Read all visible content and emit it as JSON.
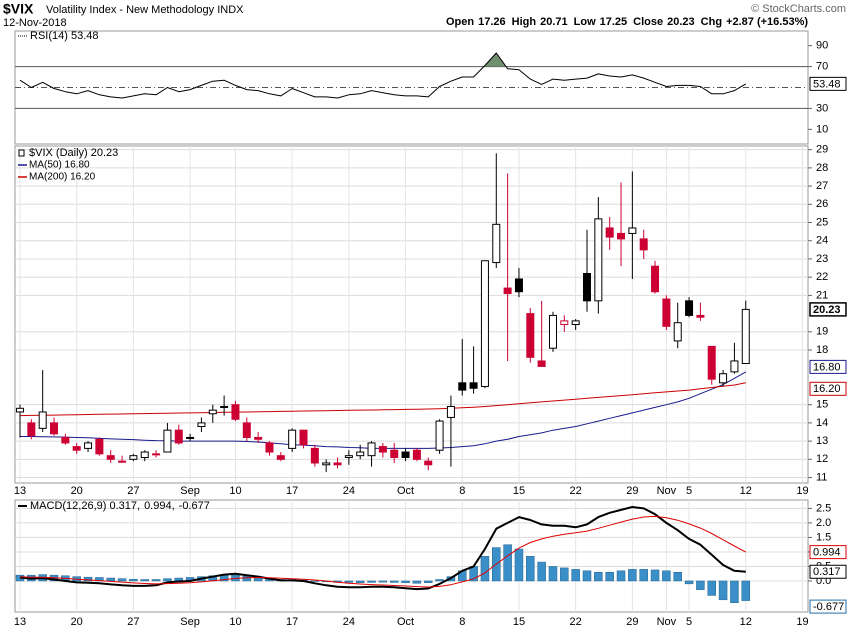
{
  "header": {
    "symbol": "$VIX",
    "name": "Volatility Index - New Methodology INDX",
    "date": "12-Nov-2018",
    "credit": "© StockCharts.com",
    "quote": [
      {
        "label": "Open",
        "value": 17.26
      },
      {
        "label": "High",
        "value": 20.71
      },
      {
        "label": "Low",
        "value": 17.25
      },
      {
        "label": "Close",
        "value": 20.23
      },
      {
        "label": "Chg",
        "value": "+2.87 (+16.53%)"
      }
    ]
  },
  "chart_data": [
    {
      "type": "line",
      "label": "RSI(14) 53.48",
      "color": "#000000",
      "fill_color": "#6f8f6f",
      "fill_level": 70,
      "levels": [
        70,
        50,
        30
      ],
      "ylim": [
        -4,
        104
      ],
      "yticks": [
        10,
        30,
        70,
        90
      ],
      "badge": "53.48",
      "values": [
        57,
        50,
        55,
        49,
        46,
        44,
        47,
        43,
        41,
        40,
        42,
        44,
        43,
        50,
        46,
        48,
        52,
        56,
        57,
        52,
        48,
        47,
        44,
        42,
        49,
        45,
        41,
        41,
        40,
        43,
        44,
        47,
        45,
        43,
        42,
        42,
        41,
        51,
        56,
        60,
        60,
        71,
        83,
        68,
        67,
        58,
        53,
        58,
        57,
        58,
        59,
        63,
        61,
        60,
        62,
        59,
        55,
        51,
        52,
        52,
        51,
        44,
        44,
        47,
        53.48,
        null,
        null,
        null,
        null,
        null
      ]
    },
    {
      "type": "candlestick",
      "label": "$VIX (Daily) 20.23",
      "badge": "20.23",
      "up_color": "#000000",
      "down_color": "#cc0033",
      "grid": true,
      "ylim": [
        10.7,
        29.2
      ],
      "yticks": [
        11,
        12,
        13,
        14,
        15,
        18,
        19,
        21,
        22,
        23,
        24,
        25,
        26,
        27,
        28,
        29
      ],
      "categories": [
        "13",
        null,
        null,
        null,
        null,
        "20",
        null,
        null,
        null,
        null,
        "27",
        null,
        null,
        null,
        null,
        "Sep",
        null,
        null,
        null,
        "10",
        null,
        null,
        null,
        null,
        "17",
        null,
        null,
        null,
        null,
        "24",
        null,
        null,
        null,
        null,
        "Oct",
        null,
        null,
        null,
        null,
        "8",
        null,
        null,
        null,
        null,
        "15",
        null,
        null,
        null,
        null,
        "22",
        null,
        null,
        null,
        null,
        "29",
        null,
        null,
        "Nov",
        null,
        "5",
        null,
        null,
        null,
        null,
        "12",
        null,
        null,
        null,
        null,
        "19"
      ],
      "open": [
        14.6,
        14.0,
        13.7,
        14.0,
        13.2,
        12.7,
        12.6,
        13.1,
        12.2,
        11.9,
        12.0,
        12.1,
        12.3,
        12.4,
        13.6,
        13.2,
        13.8,
        14.5,
        14.9,
        15.0,
        14.0,
        13.2,
        12.9,
        12.2,
        12.6,
        13.6,
        12.6,
        11.7,
        11.8,
        12.1,
        12.2,
        12.2,
        12.7,
        12.5,
        12.4,
        12.5,
        11.9,
        12.5,
        14.3,
        16.2,
        16.2,
        16.0,
        22.8,
        21.4,
        21.9,
        20.0,
        17.4,
        18.1,
        19.4,
        19.4,
        22.2,
        20.7,
        24.7,
        24.4,
        24.4,
        24.1,
        22.6,
        20.8,
        18.5,
        20.7,
        19.9,
        18.2,
        16.2,
        16.8,
        17.26,
        null,
        null,
        null,
        null,
        null
      ],
      "high": [
        15.0,
        14.2,
        16.9,
        14.3,
        13.4,
        12.9,
        13.0,
        13.2,
        12.5,
        12.2,
        12.3,
        12.5,
        12.5,
        14.0,
        13.9,
        13.4,
        14.3,
        15.0,
        15.5,
        15.2,
        14.3,
        13.5,
        13.0,
        12.4,
        13.7,
        13.6,
        12.8,
        12.0,
        12.1,
        12.5,
        12.8,
        13.0,
        12.9,
        12.9,
        12.6,
        12.6,
        12.1,
        14.2,
        15.5,
        18.6,
        18.2,
        22.9,
        28.8,
        27.7,
        22.5,
        20.3,
        20.7,
        20.1,
        19.9,
        19.7,
        24.6,
        26.4,
        25.3,
        27.2,
        27.8,
        24.6,
        22.9,
        21.0,
        20.6,
        20.9,
        20.6,
        18.2,
        16.9,
        18.4,
        20.71,
        null,
        null,
        null,
        null,
        null
      ],
      "low": [
        13.2,
        13.1,
        13.5,
        13.3,
        12.8,
        12.3,
        12.4,
        12.2,
        11.8,
        11.8,
        11.9,
        11.9,
        12.1,
        12.4,
        12.8,
        13.0,
        13.5,
        14.0,
        14.4,
        14.1,
        13.0,
        12.9,
        12.2,
        11.9,
        12.4,
        12.6,
        11.6,
        11.3,
        11.5,
        11.7,
        12.0,
        11.6,
        12.1,
        11.8,
        11.9,
        11.9,
        11.4,
        12.3,
        11.6,
        15.5,
        15.6,
        15.9,
        22.5,
        17.4,
        20.9,
        17.3,
        17.1,
        17.9,
        19.0,
        19.1,
        20.1,
        20.0,
        23.5,
        22.6,
        21.9,
        23.0,
        21.1,
        19.1,
        18.1,
        19.8,
        19.6,
        16.1,
        16.0,
        16.7,
        17.25,
        null,
        null,
        null,
        null,
        null
      ],
      "close": [
        14.8,
        13.3,
        14.6,
        13.4,
        12.9,
        12.5,
        12.9,
        12.3,
        12.0,
        11.9,
        12.2,
        12.4,
        12.3,
        13.6,
        12.9,
        13.2,
        14.0,
        14.7,
        14.9,
        14.2,
        13.2,
        13.1,
        12.4,
        12.0,
        13.6,
        12.8,
        11.8,
        11.8,
        11.7,
        12.2,
        12.4,
        12.9,
        12.4,
        12.1,
        12.1,
        12.0,
        11.7,
        14.1,
        14.9,
        15.8,
        15.9,
        22.9,
        24.9,
        21.1,
        21.2,
        17.6,
        17.1,
        19.9,
        19.6,
        19.6,
        20.7,
        25.2,
        24.2,
        24.1,
        24.7,
        23.5,
        21.2,
        19.3,
        19.5,
        19.9,
        19.8,
        16.4,
        16.7,
        17.4,
        20.23,
        null,
        null,
        null,
        null,
        null
      ],
      "series": [
        {
          "name": "MA(50) 16.80",
          "color": "#1a1a8c",
          "badge": "16.80",
          "values": [
            13.25,
            13.25,
            13.24,
            13.23,
            13.22,
            13.2,
            13.18,
            13.15,
            13.12,
            13.1,
            13.08,
            13.05,
            13.03,
            13.02,
            13.0,
            13.0,
            13.0,
            13.0,
            13.0,
            13.0,
            12.98,
            12.95,
            12.9,
            12.85,
            12.8,
            12.78,
            12.75,
            12.7,
            12.68,
            12.65,
            12.63,
            12.6,
            12.6,
            12.6,
            12.6,
            12.6,
            12.6,
            12.62,
            12.65,
            12.7,
            12.75,
            12.85,
            13.0,
            13.1,
            13.25,
            13.35,
            13.45,
            13.6,
            13.7,
            13.8,
            13.95,
            14.1,
            14.25,
            14.4,
            14.55,
            14.7,
            14.85,
            15.0,
            15.15,
            15.35,
            15.6,
            15.85,
            16.1,
            16.45,
            16.8,
            null,
            null,
            null,
            null,
            null
          ]
        },
        {
          "name": "MA(200) 16.20",
          "color": "#cc0000",
          "badge": "16.20",
          "values": [
            14.4,
            14.41,
            14.42,
            14.43,
            14.44,
            14.45,
            14.46,
            14.47,
            14.48,
            14.49,
            14.5,
            14.51,
            14.52,
            14.53,
            14.54,
            14.55,
            14.56,
            14.57,
            14.58,
            14.59,
            14.6,
            14.61,
            14.62,
            14.63,
            14.64,
            14.65,
            14.66,
            14.67,
            14.68,
            14.69,
            14.7,
            14.71,
            14.72,
            14.73,
            14.74,
            14.75,
            14.76,
            14.78,
            14.8,
            14.83,
            14.86,
            14.9,
            14.95,
            15.0,
            15.05,
            15.1,
            15.15,
            15.2,
            15.25,
            15.3,
            15.35,
            15.4,
            15.45,
            15.5,
            15.55,
            15.6,
            15.65,
            15.7,
            15.75,
            15.8,
            15.87,
            15.94,
            16.01,
            16.08,
            16.2,
            null,
            null,
            null,
            null,
            null
          ]
        }
      ]
    },
    {
      "type": "combo",
      "grid": true,
      "ylim": [
        -1.07,
        2.79
      ],
      "yticks": [
        {
          "value": 0,
          "label": "0.0"
        },
        0.5,
        {
          "value": 1,
          "label": "1.0"
        },
        1.5,
        {
          "value": 2,
          "label": "2.0"
        },
        2.5
      ],
      "categories": [
        "13",
        null,
        null,
        null,
        null,
        "20",
        null,
        null,
        null,
        null,
        "27",
        null,
        null,
        null,
        null,
        "Sep",
        null,
        null,
        null,
        "10",
        null,
        null,
        null,
        null,
        "17",
        null,
        null,
        null,
        null,
        "24",
        null,
        null,
        null,
        null,
        "Oct",
        null,
        null,
        null,
        null,
        "8",
        null,
        null,
        null,
        null,
        "15",
        null,
        null,
        null,
        null,
        "22",
        null,
        null,
        null,
        null,
        "29",
        null,
        null,
        "Nov",
        null,
        "5",
        null,
        null,
        null,
        null,
        "12",
        null,
        null,
        null,
        null,
        "19"
      ],
      "series": [
        {
          "name": "-0.677",
          "kind": "bar",
          "color": "#3b8fc9",
          "badge": "-0.677",
          "values": [
            0.2,
            0.2,
            0.22,
            0.2,
            0.18,
            0.15,
            0.13,
            0.12,
            0.1,
            0.08,
            0.06,
            0.05,
            0.05,
            0.08,
            0.1,
            0.12,
            0.15,
            0.18,
            0.2,
            0.2,
            0.16,
            0.12,
            0.08,
            0.05,
            0.05,
            0.03,
            0.0,
            -0.03,
            -0.05,
            -0.05,
            -0.06,
            -0.05,
            -0.04,
            -0.05,
            -0.06,
            -0.08,
            -0.06,
            0.05,
            0.15,
            0.35,
            0.5,
            0.85,
            1.15,
            1.25,
            1.1,
            0.85,
            0.65,
            0.5,
            0.45,
            0.4,
            0.35,
            0.3,
            0.3,
            0.35,
            0.4,
            0.4,
            0.38,
            0.35,
            0.3,
            -0.1,
            -0.3,
            -0.5,
            -0.65,
            -0.75,
            -0.677,
            null,
            null,
            null,
            null,
            null
          ]
        },
        {
          "name": "MACD(12,26,9) 0.317,",
          "kind": "line",
          "color": "#000000",
          "width": 2,
          "badge": "0.317",
          "values": [
            0.12,
            0.08,
            0.1,
            0.05,
            0.0,
            -0.05,
            -0.06,
            -0.08,
            -0.12,
            -0.15,
            -0.17,
            -0.17,
            -0.15,
            -0.05,
            -0.02,
            0.0,
            0.08,
            0.15,
            0.22,
            0.25,
            0.2,
            0.15,
            0.08,
            0.02,
            0.02,
            0.0,
            -0.08,
            -0.15,
            -0.2,
            -0.22,
            -0.22,
            -0.2,
            -0.2,
            -0.22,
            -0.25,
            -0.28,
            -0.26,
            -0.1,
            0.1,
            0.35,
            0.5,
            1.1,
            1.8,
            2.0,
            2.2,
            2.1,
            1.95,
            1.9,
            1.9,
            1.85,
            1.95,
            2.2,
            2.35,
            2.45,
            2.55,
            2.5,
            2.3,
            2.0,
            1.75,
            1.45,
            1.25,
            0.9,
            0.55,
            0.35,
            0.317,
            null,
            null,
            null,
            null,
            null
          ]
        },
        {
          "name": "0.994,",
          "kind": "line",
          "color": "#e00000",
          "width": 1,
          "badge": "0.994",
          "values": [
            0.144,
            0.131,
            0.125,
            0.11,
            0.088,
            0.06,
            0.036,
            0.013,
            -0.014,
            -0.041,
            -0.067,
            -0.088,
            -0.1,
            -0.09,
            -0.076,
            -0.061,
            -0.033,
            0.004,
            0.047,
            0.088,
            0.11,
            0.118,
            0.11,
            0.092,
            0.078,
            0.062,
            0.034,
            -0.003,
            -0.042,
            -0.078,
            -0.106,
            -0.125,
            -0.14,
            -0.156,
            -0.175,
            -0.196,
            -0.209,
            -0.187,
            -0.13,
            -0.034,
            0.073,
            0.278,
            0.582,
            0.866,
            1.133,
            1.326,
            1.451,
            1.541,
            1.613,
            1.66,
            1.718,
            1.814,
            1.922,
            2.027,
            2.132,
            2.205,
            2.224,
            2.179,
            2.094,
            1.965,
            1.822,
            1.637,
            1.42,
            1.206,
            0.994,
            null,
            null,
            null,
            null,
            null
          ]
        }
      ]
    }
  ]
}
